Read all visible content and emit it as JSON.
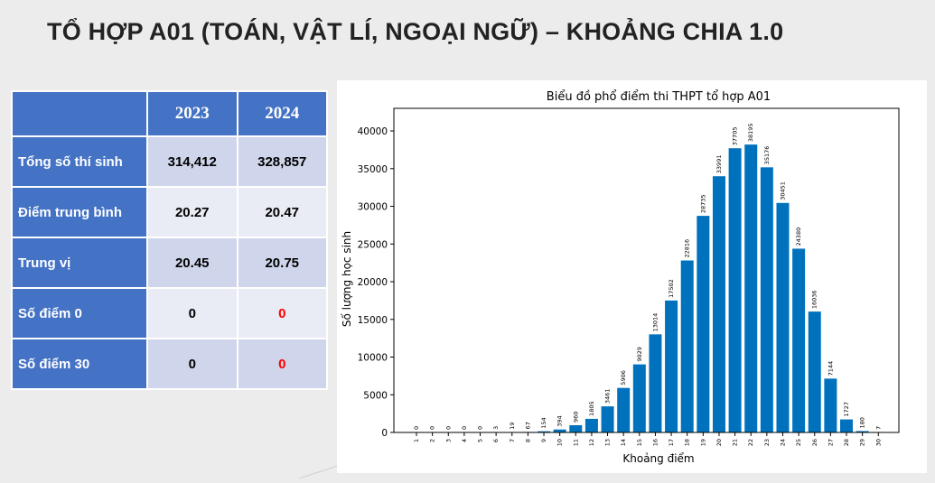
{
  "page": {
    "title": "TỔ HỢP A01 (TOÁN, VẬT LÍ, NGOẠI NGỮ) – KHOẢNG CHIA 1.0"
  },
  "table": {
    "years": [
      "2023",
      "2024"
    ],
    "rows": [
      {
        "label": "Tổng số thí sinh",
        "v2023": "314,412",
        "v2024": "328,857"
      },
      {
        "label": "Điểm trung bình",
        "v2023": "20.27",
        "v2024": "20.47"
      },
      {
        "label": "Trung vị",
        "v2023": "20.45",
        "v2024": "20.75"
      },
      {
        "label": "Số điểm 0",
        "v2023": "0",
        "v2024": "0"
      },
      {
        "label": "Số điểm 30",
        "v2023": "0",
        "v2024": "0"
      }
    ],
    "colors": {
      "header_bg": "#4472c4",
      "highlight": "#ff0000"
    }
  },
  "chart_data": {
    "type": "bar",
    "title": "Biểu đồ phổ điểm thi THPT tổ hợp A01",
    "xlabel": "Khoảng điểm",
    "ylabel": "Số lượng học sinh",
    "categories": [
      "1",
      "2",
      "3",
      "4",
      "5",
      "6",
      "7",
      "8",
      "9",
      "10",
      "11",
      "12",
      "13",
      "14",
      "15",
      "16",
      "17",
      "18",
      "19",
      "20",
      "21",
      "22",
      "23",
      "24",
      "25",
      "26",
      "27",
      "28",
      "29",
      "30"
    ],
    "values": [
      0,
      0,
      0,
      0,
      0,
      3,
      19,
      67,
      154,
      394,
      960,
      1805,
      3461,
      5906,
      9029,
      13014,
      17502,
      22816,
      28735,
      33991,
      37705,
      38195,
      35176,
      30451,
      24380,
      16036,
      7144,
      1727,
      180,
      7
    ],
    "ylim": [
      0,
      43000
    ],
    "yticks": [
      0,
      5000,
      10000,
      15000,
      20000,
      25000,
      30000,
      35000,
      40000
    ],
    "bar_color": "#0072bd",
    "grid": false
  }
}
